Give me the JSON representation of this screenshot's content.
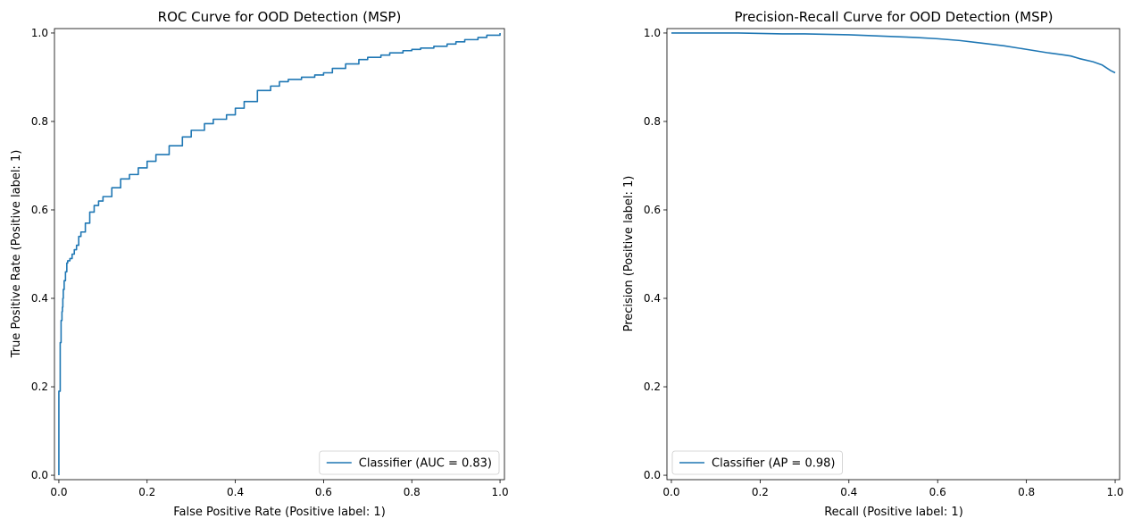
{
  "chart_data": [
    {
      "type": "line",
      "title": "ROC Curve for OOD Detection (MSP)",
      "xlabel": "False Positive Rate (Positive label: 1)",
      "ylabel": "True Positive Rate (Positive label: 1)",
      "xlim": [
        -0.01,
        1.01
      ],
      "ylim": [
        -0.01,
        1.01
      ],
      "xticks": [
        "0.0",
        "0.2",
        "0.4",
        "0.6",
        "0.8",
        "1.0"
      ],
      "yticks": [
        "0.0",
        "0.2",
        "0.4",
        "0.6",
        "0.8",
        "1.0"
      ],
      "grid": false,
      "legend_position": "lower right",
      "line_color": "#1f77b4",
      "series": [
        {
          "name": "Classifier (AUC = 0.83)",
          "x": [
            0,
            0,
            0.003,
            0.003,
            0.005,
            0.005,
            0.007,
            0.008,
            0.009,
            0.01,
            0.012,
            0.015,
            0.018,
            0.02,
            0.025,
            0.03,
            0.035,
            0.04,
            0.045,
            0.05,
            0.06,
            0.07,
            0.08,
            0.09,
            0.1,
            0.12,
            0.14,
            0.16,
            0.18,
            0.2,
            0.22,
            0.25,
            0.28,
            0.3,
            0.33,
            0.35,
            0.38,
            0.4,
            0.42,
            0.45,
            0.48,
            0.5,
            0.52,
            0.55,
            0.58,
            0.6,
            0.62,
            0.65,
            0.68,
            0.7,
            0.73,
            0.75,
            0.78,
            0.8,
            0.82,
            0.85,
            0.88,
            0.9,
            0.92,
            0.95,
            0.97,
            1.0
          ],
          "y": [
            0,
            0.19,
            0.21,
            0.3,
            0.33,
            0.35,
            0.37,
            0.38,
            0.4,
            0.42,
            0.44,
            0.46,
            0.48,
            0.485,
            0.49,
            0.5,
            0.51,
            0.52,
            0.54,
            0.55,
            0.57,
            0.595,
            0.61,
            0.62,
            0.63,
            0.65,
            0.67,
            0.68,
            0.695,
            0.71,
            0.725,
            0.745,
            0.765,
            0.78,
            0.795,
            0.805,
            0.815,
            0.83,
            0.845,
            0.87,
            0.88,
            0.89,
            0.895,
            0.9,
            0.905,
            0.91,
            0.92,
            0.93,
            0.94,
            0.945,
            0.95,
            0.955,
            0.96,
            0.963,
            0.966,
            0.97,
            0.975,
            0.98,
            0.985,
            0.99,
            0.995,
            1.0
          ]
        }
      ]
    },
    {
      "type": "line",
      "title": "Precision-Recall Curve for OOD Detection (MSP)",
      "xlabel": "Recall (Positive label: 1)",
      "ylabel": "Precision (Positive label: 1)",
      "xlim": [
        -0.01,
        1.01
      ],
      "ylim": [
        -0.01,
        1.01
      ],
      "xticks": [
        "0.0",
        "0.2",
        "0.4",
        "0.6",
        "0.8",
        "1.0"
      ],
      "yticks": [
        "0.0",
        "0.2",
        "0.4",
        "0.6",
        "0.8",
        "1.0"
      ],
      "grid": false,
      "legend_position": "lower left",
      "line_color": "#1f77b4",
      "series": [
        {
          "name": "Classifier (AP = 0.98)",
          "x": [
            0,
            0.05,
            0.1,
            0.15,
            0.2,
            0.25,
            0.3,
            0.35,
            0.4,
            0.45,
            0.5,
            0.55,
            0.6,
            0.65,
            0.7,
            0.75,
            0.8,
            0.85,
            0.88,
            0.9,
            0.92,
            0.95,
            0.97,
            0.99,
            1.0
          ],
          "y": [
            1.0,
            1.0,
            1.0,
            1.0,
            0.999,
            0.998,
            0.998,
            0.997,
            0.996,
            0.994,
            0.992,
            0.99,
            0.987,
            0.983,
            0.977,
            0.971,
            0.963,
            0.955,
            0.951,
            0.948,
            0.942,
            0.935,
            0.928,
            0.915,
            0.91
          ]
        }
      ]
    }
  ]
}
